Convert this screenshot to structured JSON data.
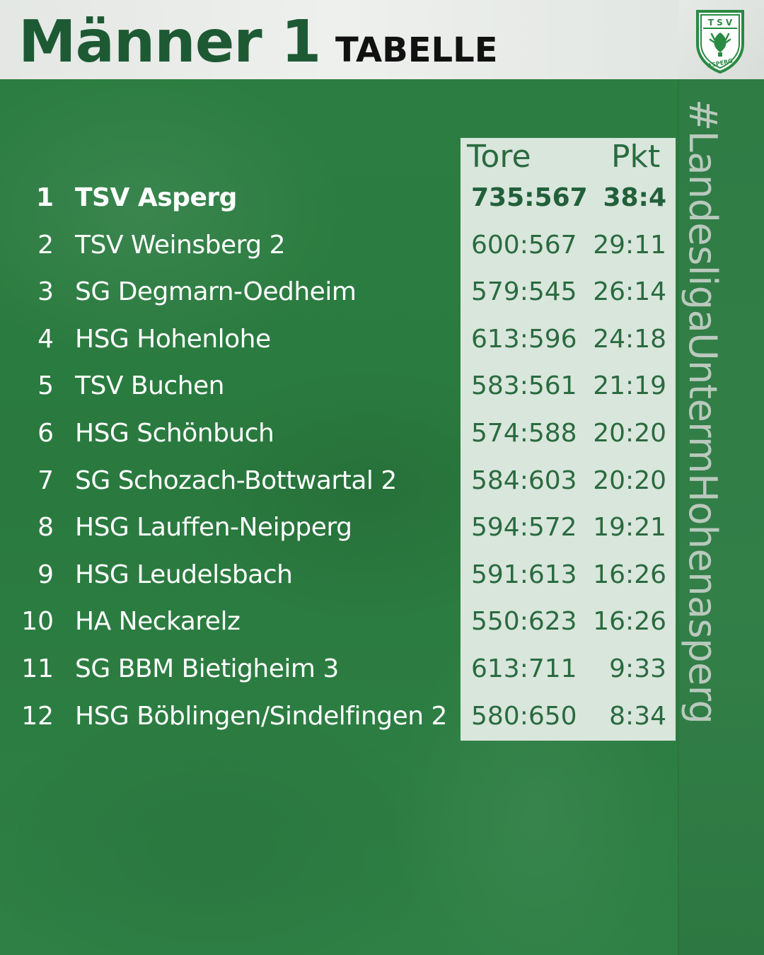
{
  "header": {
    "title": "Männer 1",
    "subtitle": "TABELLE",
    "logo_text_top": "T S V",
    "logo_text_bottom": "ASPERG"
  },
  "hashtag": "#LandesligaUntermHohenasperg",
  "table": {
    "col_goals": "Tore",
    "col_points": "Pkt",
    "rows": [
      {
        "rank": "1",
        "team": "TSV Asperg",
        "goals": "735:567",
        "points": "38:4"
      },
      {
        "rank": "2",
        "team": "TSV Weinsberg 2",
        "goals": "600:567",
        "points": "29:11"
      },
      {
        "rank": "3",
        "team": "SG Degmarn-Oedheim",
        "goals": "579:545",
        "points": "26:14"
      },
      {
        "rank": "4",
        "team": "HSG Hohenlohe",
        "goals": "613:596",
        "points": "24:18"
      },
      {
        "rank": "5",
        "team": "TSV Buchen",
        "goals": "583:561",
        "points": "21:19"
      },
      {
        "rank": "6",
        "team": "HSG Schönbuch",
        "goals": "574:588",
        "points": "20:20"
      },
      {
        "rank": "7",
        "team": "SG Schozach-Bottwartal 2",
        "goals": "584:603",
        "points": "20:20"
      },
      {
        "rank": "8",
        "team": "HSG Lauffen-Neipperg",
        "goals": "594:572",
        "points": "19:21"
      },
      {
        "rank": "9",
        "team": "HSG Leudelsbach",
        "goals": "591:613",
        "points": "16:26"
      },
      {
        "rank": "10",
        "team": "HA Neckarelz",
        "goals": "550:623",
        "points": "16:26"
      },
      {
        "rank": "11",
        "team": "SG BBM Bietigheim 3",
        "goals": "613:711",
        "points": "9:33"
      },
      {
        "rank": "12",
        "team": "HSG Böblingen/Sindelfingen 2",
        "goals": "580:650",
        "points": "8:34"
      }
    ]
  },
  "colors": {
    "background_green": "#2a7a3f",
    "dark_green": "#1d5a34",
    "panel": "#d9e6dc",
    "header_band": "#e4e7e4"
  }
}
